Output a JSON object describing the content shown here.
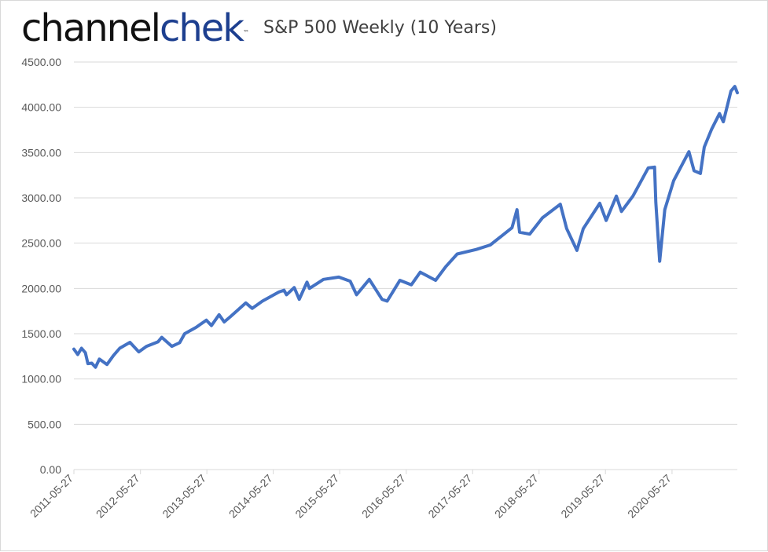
{
  "logo": {
    "part1": "channel",
    "part2": "chek",
    "tm": "™"
  },
  "chart_data": {
    "type": "line",
    "title": "S&P 500 Weekly (10 Years)",
    "xlabel": "",
    "ylabel": "",
    "x_range": [
      "2011-05-27",
      "2021-05-21"
    ],
    "ylim": [
      0,
      4500
    ],
    "grid": true,
    "colors": {
      "line": "#4472c4",
      "grid": "#d9d9d9",
      "text": "#595959"
    },
    "y_ticks": [
      {
        "value": 0,
        "label": "0.00"
      },
      {
        "value": 500,
        "label": "500.00"
      },
      {
        "value": 1000,
        "label": "1000.00"
      },
      {
        "value": 1500,
        "label": "1500.00"
      },
      {
        "value": 2000,
        "label": "2000.00"
      },
      {
        "value": 2500,
        "label": "2500.00"
      },
      {
        "value": 3000,
        "label": "3000.00"
      },
      {
        "value": 3500,
        "label": "3500.00"
      },
      {
        "value": 4000,
        "label": "4000.00"
      },
      {
        "value": 4500,
        "label": "4500.00"
      }
    ],
    "x_ticks": [
      "2011-05-27",
      "2012-05-27",
      "2013-05-27",
      "2014-05-27",
      "2015-05-27",
      "2016-05-27",
      "2017-05-27",
      "2018-05-27",
      "2019-05-27",
      "2020-05-27"
    ],
    "series": [
      {
        "points": [
          [
            "2011-05-27",
            1330
          ],
          [
            "2011-06-17",
            1270
          ],
          [
            "2011-07-08",
            1340
          ],
          [
            "2011-07-29",
            1290
          ],
          [
            "2011-08-12",
            1170
          ],
          [
            "2011-09-02",
            1175
          ],
          [
            "2011-09-23",
            1130
          ],
          [
            "2011-10-14",
            1220
          ],
          [
            "2011-11-25",
            1160
          ],
          [
            "2011-12-30",
            1258
          ],
          [
            "2012-02-03",
            1340
          ],
          [
            "2012-03-30",
            1405
          ],
          [
            "2012-05-18",
            1300
          ],
          [
            "2012-06-29",
            1360
          ],
          [
            "2012-08-31",
            1410
          ],
          [
            "2012-09-21",
            1460
          ],
          [
            "2012-11-16",
            1360
          ],
          [
            "2012-12-28",
            1400
          ],
          [
            "2013-01-25",
            1500
          ],
          [
            "2013-03-29",
            1570
          ],
          [
            "2013-05-24",
            1650
          ],
          [
            "2013-06-21",
            1590
          ],
          [
            "2013-08-02",
            1710
          ],
          [
            "2013-08-30",
            1630
          ],
          [
            "2013-10-04",
            1690
          ],
          [
            "2013-12-27",
            1840
          ],
          [
            "2014-01-31",
            1780
          ],
          [
            "2014-03-28",
            1860
          ],
          [
            "2014-06-27",
            1960
          ],
          [
            "2014-07-25",
            1980
          ],
          [
            "2014-08-08",
            1930
          ],
          [
            "2014-09-19",
            2010
          ],
          [
            "2014-10-17",
            1880
          ],
          [
            "2014-11-28",
            2070
          ],
          [
            "2014-12-12",
            2000
          ],
          [
            "2015-02-27",
            2100
          ],
          [
            "2015-05-22",
            2125
          ],
          [
            "2015-07-24",
            2080
          ],
          [
            "2015-08-28",
            1930
          ],
          [
            "2015-11-06",
            2100
          ],
          [
            "2016-01-15",
            1880
          ],
          [
            "2016-02-12",
            1860
          ],
          [
            "2016-04-22",
            2090
          ],
          [
            "2016-06-24",
            2040
          ],
          [
            "2016-08-12",
            2180
          ],
          [
            "2016-11-04",
            2090
          ],
          [
            "2016-12-30",
            2240
          ],
          [
            "2017-03-03",
            2380
          ],
          [
            "2017-06-16",
            2430
          ],
          [
            "2017-09-01",
            2480
          ],
          [
            "2017-12-29",
            2670
          ],
          [
            "2018-01-26",
            2870
          ],
          [
            "2018-02-09",
            2620
          ],
          [
            "2018-04-06",
            2600
          ],
          [
            "2018-06-15",
            2780
          ],
          [
            "2018-09-21",
            2930
          ],
          [
            "2018-10-26",
            2660
          ],
          [
            "2018-12-21",
            2420
          ],
          [
            "2019-01-25",
            2660
          ],
          [
            "2019-04-26",
            2940
          ],
          [
            "2019-05-31",
            2750
          ],
          [
            "2019-07-26",
            3020
          ],
          [
            "2019-08-23",
            2850
          ],
          [
            "2019-10-25",
            3020
          ],
          [
            "2020-01-17",
            3330
          ],
          [
            "2020-02-21",
            3340
          ],
          [
            "2020-02-28",
            2950
          ],
          [
            "2020-03-20",
            2300
          ],
          [
            "2020-04-17",
            2870
          ],
          [
            "2020-06-05",
            3190
          ],
          [
            "2020-08-28",
            3510
          ],
          [
            "2020-09-25",
            3300
          ],
          [
            "2020-10-30",
            3270
          ],
          [
            "2020-11-20",
            3560
          ],
          [
            "2020-12-31",
            3760
          ],
          [
            "2021-02-12",
            3930
          ],
          [
            "2021-03-05",
            3840
          ],
          [
            "2021-04-16",
            4180
          ],
          [
            "2021-05-07",
            4230
          ],
          [
            "2021-05-21",
            4160
          ]
        ]
      }
    ]
  }
}
